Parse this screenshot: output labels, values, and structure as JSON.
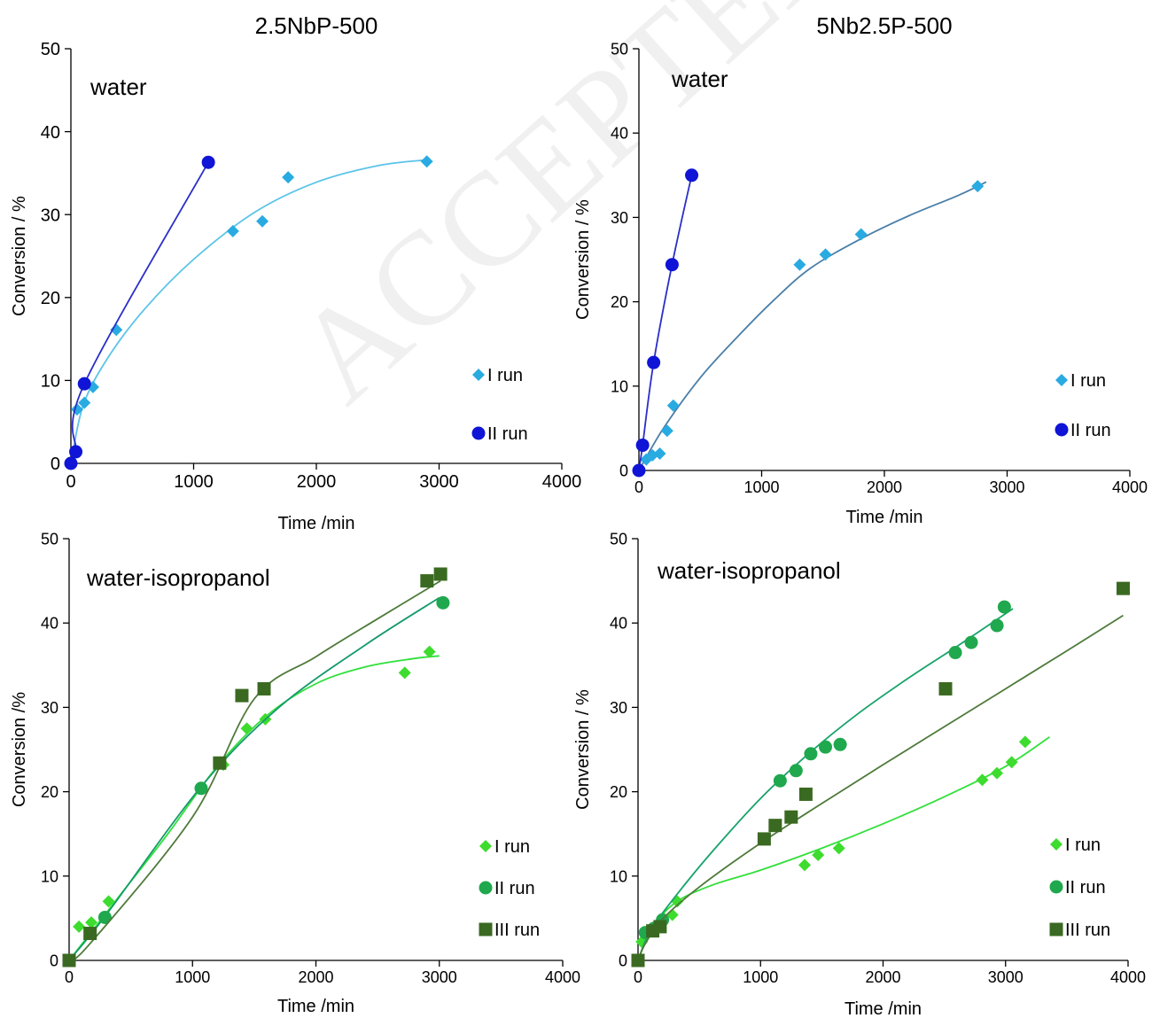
{
  "watermark": "ACCEPTED MANUSCRIPT",
  "chart_data": [
    {
      "type": "scatter",
      "title": "2.5NbP-500",
      "annotation": "water",
      "xlabel": "Time /min",
      "ylabel": "Conversion / %",
      "xlim": [
        0,
        4000
      ],
      "ylim": [
        0,
        50
      ],
      "xticks": [
        0,
        1000,
        2000,
        3000,
        4000
      ],
      "yticks": [
        0,
        10,
        20,
        30,
        40,
        50
      ],
      "grid": false,
      "legend_position": "right",
      "series": [
        {
          "name": "I run",
          "marker": "diamond",
          "color": "#29abe2",
          "line_color": "#5bc4e8",
          "x": [
            0,
            50,
            110,
            180,
            370,
            1320,
            1560,
            1770,
            2900
          ],
          "y": [
            0,
            6.5,
            7.3,
            9.2,
            16.1,
            28.0,
            29.2,
            34.5,
            36.4
          ],
          "fit_x": [
            0,
            100,
            300,
            600,
            1000,
            1500,
            2000,
            2500,
            2900
          ],
          "fit_y": [
            0,
            7.0,
            12.7,
            18.6,
            24.6,
            30.3,
            33.9,
            35.9,
            36.6
          ]
        },
        {
          "name": "II run",
          "marker": "circle",
          "color": "#0f14d6",
          "line_color": "#2a2fc8",
          "x": [
            0,
            40,
            110,
            1120
          ],
          "y": [
            0,
            1.4,
            9.6,
            36.3
          ],
          "fit_x": [
            0,
            40,
            110,
            1120
          ],
          "fit_y": [
            0,
            1.4,
            9.6,
            36.3
          ]
        }
      ]
    },
    {
      "type": "scatter",
      "title": "5Nb2.5P-500",
      "annotation": "water",
      "xlabel": "Time /min",
      "ylabel": "Conversion / %",
      "xlim": [
        0,
        4000
      ],
      "ylim": [
        0,
        50
      ],
      "xticks": [
        0,
        1000,
        2000,
        3000,
        4000
      ],
      "yticks": [
        0,
        10,
        20,
        30,
        40,
        50
      ],
      "grid": false,
      "legend_position": "right",
      "series": [
        {
          "name": "I run",
          "marker": "diamond",
          "color": "#29abe2",
          "line_color": "#4a7fa8",
          "x": [
            0,
            60,
            110,
            170,
            230,
            280,
            1310,
            1520,
            1810,
            2760
          ],
          "y": [
            0,
            1.3,
            1.8,
            2.0,
            4.7,
            7.7,
            24.4,
            25.6,
            28.0,
            33.7
          ],
          "fit_x": [
            0,
            200,
            500,
            800,
            1100,
            1400,
            1800,
            2200,
            2600,
            2830
          ],
          "fit_y": [
            0,
            5.0,
            11.0,
            15.8,
            20.2,
            24.0,
            27.4,
            30.2,
            32.6,
            34.2
          ]
        },
        {
          "name": "II run",
          "marker": "circle",
          "color": "#0f14d6",
          "line_color": "#2a2fc8",
          "x": [
            0,
            30,
            120,
            270,
            430
          ],
          "y": [
            0,
            3.0,
            12.8,
            24.4,
            35.0
          ],
          "fit_x": [
            0,
            30,
            120,
            270,
            430
          ],
          "fit_y": [
            0,
            3.0,
            12.8,
            24.4,
            35.0
          ]
        }
      ]
    },
    {
      "type": "scatter",
      "title": "",
      "annotation": "water-isopropanol",
      "xlabel": "Time /min",
      "ylabel": "Conversion /%",
      "xlim": [
        0,
        4000
      ],
      "ylim": [
        0,
        50
      ],
      "xticks": [
        0,
        1000,
        2000,
        3000,
        4000
      ],
      "yticks": [
        0,
        10,
        20,
        30,
        40,
        50
      ],
      "grid": false,
      "legend_position": "right",
      "series": [
        {
          "name": "I run",
          "marker": "diamond",
          "color": "#3ddc2e",
          "line_color": "#2fe03a",
          "x": [
            0,
            80,
            180,
            320,
            1250,
            1440,
            1590,
            2720,
            2920
          ],
          "y": [
            0,
            4.0,
            4.5,
            7.0,
            23.2,
            27.5,
            28.6,
            34.1,
            36.6
          ],
          "fit_x": [
            0,
            400,
            800,
            1200,
            1600,
            2000,
            2400,
            2800,
            3000
          ],
          "fit_y": [
            0,
            7.5,
            15.0,
            23.0,
            29.0,
            32.8,
            34.8,
            35.8,
            36.1
          ]
        },
        {
          "name": "II run",
          "marker": "circle",
          "color": "#1fa84d",
          "line_color": "#159a6a",
          "x": [
            0,
            290,
            1070,
            3030
          ],
          "y": [
            0,
            5.1,
            20.4,
            42.4
          ],
          "fit_x": [
            0,
            300,
            1070,
            1700,
            2400,
            3000
          ],
          "fit_y": [
            0,
            5.4,
            20.6,
            30.0,
            37.4,
            43.0
          ]
        },
        {
          "name": "III run",
          "marker": "square",
          "color": "#3a6a21",
          "line_color": "#4e7a3a",
          "x": [
            0,
            170,
            1220,
            1400,
            1580,
            2900,
            3010
          ],
          "y": [
            0,
            3.2,
            23.4,
            31.4,
            32.2,
            45.0,
            45.8
          ],
          "fit_x": [
            0,
            170,
            1000,
            1500,
            2000,
            2500,
            3010
          ],
          "fit_y": [
            0,
            2.0,
            17.0,
            31.0,
            36.0,
            40.5,
            45.0
          ]
        }
      ]
    },
    {
      "type": "scatter",
      "title": "",
      "annotation": "water-isopropanol",
      "xlabel": "Time /min",
      "ylabel": "Conversion / %",
      "xlim": [
        0,
        4000
      ],
      "ylim": [
        0,
        50
      ],
      "xticks": [
        0,
        1000,
        2000,
        3000,
        4000
      ],
      "yticks": [
        0,
        10,
        20,
        30,
        40,
        50
      ],
      "grid": false,
      "legend_position": "right",
      "series": [
        {
          "name": "I run",
          "marker": "diamond",
          "color": "#3ddc2e",
          "line_color": "#33e03a",
          "x": [
            0,
            30,
            80,
            140,
            280,
            320,
            1360,
            1470,
            1640,
            2810,
            2930,
            3050,
            3160
          ],
          "y": [
            0,
            2.2,
            3.2,
            4.0,
            5.4,
            7.0,
            11.3,
            12.5,
            13.3,
            21.4,
            22.2,
            23.5,
            25.9
          ],
          "fit_x": [
            0,
            100,
            300,
            600,
            1000,
            1500,
            2000,
            2500,
            3000,
            3360
          ],
          "fit_y": [
            0,
            3.5,
            6.8,
            8.9,
            10.7,
            13.3,
            16.2,
            19.4,
            23.0,
            26.5
          ]
        },
        {
          "name": "II run",
          "marker": "circle",
          "color": "#1fa84d",
          "line_color": "#17a36a",
          "x": [
            0,
            60,
            130,
            200,
            1160,
            1290,
            1410,
            1530,
            1650,
            2590,
            2720,
            2930,
            2990
          ],
          "y": [
            0,
            3.3,
            3.8,
            4.8,
            21.3,
            22.5,
            24.5,
            25.3,
            25.6,
            36.5,
            37.7,
            39.7,
            41.9
          ],
          "fit_x": [
            0,
            100,
            300,
            600,
            1000,
            1400,
            1800,
            2200,
            2600,
            3060
          ],
          "fit_y": [
            0,
            3.5,
            7.5,
            12.8,
            19.2,
            24.6,
            29.3,
            33.4,
            37.2,
            41.7
          ]
        },
        {
          "name": "III run",
          "marker": "square",
          "color": "#3a6a21",
          "line_color": "#4e7a3a",
          "x": [
            0,
            120,
            180,
            1030,
            1120,
            1250,
            1370,
            2510,
            3960
          ],
          "y": [
            0,
            3.5,
            4.0,
            14.4,
            16.0,
            17.0,
            19.7,
            32.2,
            44.1
          ],
          "fit_x": [
            0,
            60,
            200,
            500,
            1000,
            1500,
            2000,
            2500,
            3000,
            3500,
            3960
          ],
          "fit_y": [
            0,
            2.0,
            4.9,
            8.7,
            13.9,
            18.6,
            23.2,
            27.7,
            32.2,
            36.7,
            40.9
          ]
        }
      ]
    }
  ]
}
